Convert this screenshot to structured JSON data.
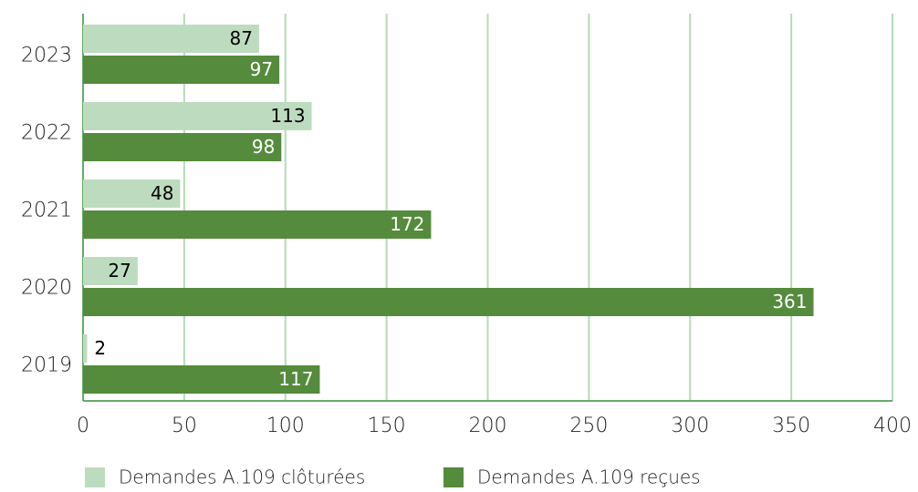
{
  "chart_data": {
    "type": "hbar",
    "categories": [
      "2023",
      "2022",
      "2021",
      "2020",
      "2019"
    ],
    "series": [
      {
        "name": "Demandes A.109 clôturées",
        "color": "#bddcbf",
        "label_color": "#000000",
        "values": [
          87,
          113,
          48,
          27,
          2
        ]
      },
      {
        "name": "Demandes A.109 reçues",
        "color": "#548b3c",
        "label_color": "#ffffff",
        "values": [
          97,
          98,
          172,
          361,
          117
        ]
      }
    ],
    "xlim": [
      0,
      400
    ],
    "xticks": [
      0,
      50,
      100,
      150,
      200,
      250,
      300,
      350,
      400
    ],
    "grid": true,
    "legend": "bottom"
  }
}
